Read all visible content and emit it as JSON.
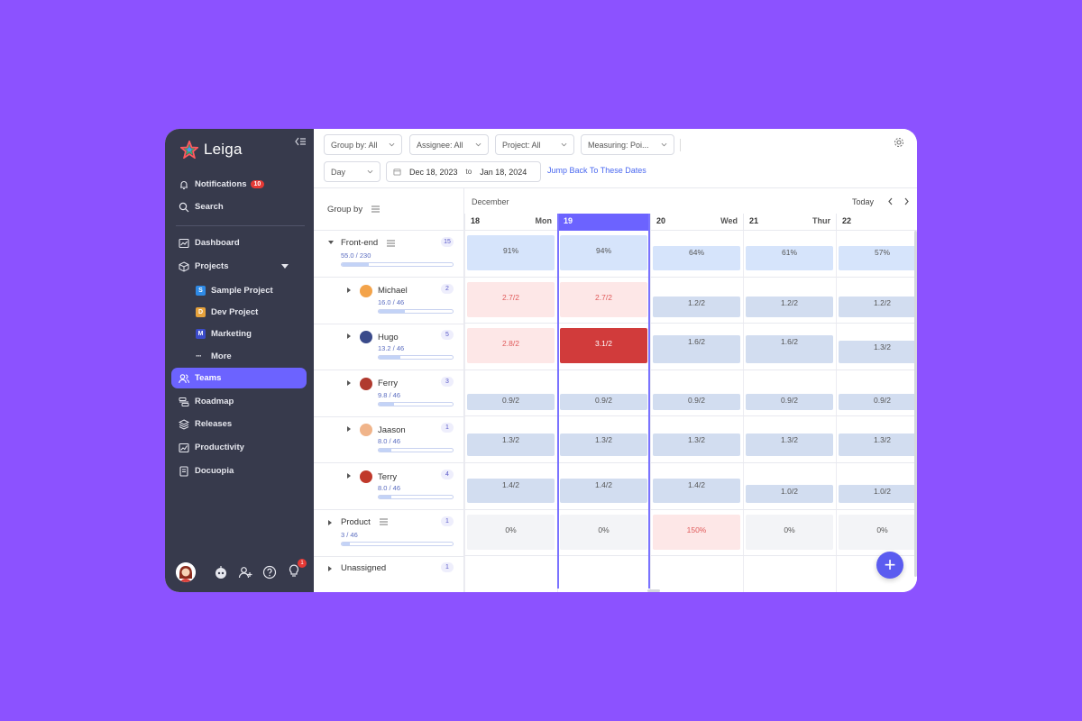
{
  "app": {
    "name": "Leiga"
  },
  "sidebar": {
    "notifications": {
      "label": "Notifications",
      "count": "10"
    },
    "search": {
      "label": "Search"
    },
    "dashboard": {
      "label": "Dashboard"
    },
    "projects": {
      "label": "Projects"
    },
    "project_items": [
      {
        "label": "Sample Project",
        "letter": "S",
        "color": "#2e8ae6"
      },
      {
        "label": "Dev Project",
        "letter": "D",
        "color": "#e6a23c"
      },
      {
        "label": "Marketing",
        "letter": "M",
        "color": "#3b4bc8"
      }
    ],
    "more": {
      "label": "More"
    },
    "teams": {
      "label": "Teams"
    },
    "roadmap": {
      "label": "Roadmap"
    },
    "releases": {
      "label": "Releases"
    },
    "productivity": {
      "label": "Productivity"
    },
    "docuopia": {
      "label": "Docuopia"
    },
    "bulb_badge": "1"
  },
  "toolbar": {
    "group_by": "Group by: All",
    "assignee": "Assignee: All",
    "project": "Project: All",
    "measuring": "Measuring: Poi...",
    "period": "Day",
    "date_from": "Dec 18, 2023",
    "date_to_sep": "to",
    "date_to": "Jan 18, 2024",
    "jump_link": "Jump Back To These Dates"
  },
  "grid": {
    "group_by_label": "Group by",
    "month": "December",
    "today_label": "Today",
    "days": [
      {
        "num": "18",
        "name": "Mon"
      },
      {
        "num": "19",
        "name": ""
      },
      {
        "num": "20",
        "name": "Wed"
      },
      {
        "num": "21",
        "name": "Thur"
      },
      {
        "num": "22",
        "name": "F"
      }
    ],
    "rows": [
      {
        "name": "Front-end",
        "sub": "55.0 / 230",
        "count": "15",
        "progress": 0.24,
        "cells": [
          "91%",
          "94%",
          "64%",
          "61%",
          "57%"
        ]
      },
      {
        "name": "Michael",
        "sub": "16.0 / 46",
        "count": "2",
        "progress": 0.35,
        "cells": [
          "2.7/2",
          "2.7/2",
          "1.2/2",
          "1.2/2",
          "1.2/2"
        ]
      },
      {
        "name": "Hugo",
        "sub": "13.2 / 46",
        "count": "5",
        "progress": 0.29,
        "cells": [
          "2.8/2",
          "3.1/2",
          "1.6/2",
          "1.6/2",
          "1.3/2"
        ]
      },
      {
        "name": "Ferry",
        "sub": "9.8 / 46",
        "count": "3",
        "progress": 0.21,
        "cells": [
          "0.9/2",
          "0.9/2",
          "0.9/2",
          "0.9/2",
          "0.9/2"
        ]
      },
      {
        "name": "Jaason",
        "sub": "8.0 / 46",
        "count": "1",
        "progress": 0.17,
        "cells": [
          "1.3/2",
          "1.3/2",
          "1.3/2",
          "1.3/2",
          "1.3/2"
        ]
      },
      {
        "name": "Terry",
        "sub": "8.0 / 46",
        "count": "4",
        "progress": 0.17,
        "cells": [
          "1.4/2",
          "1.4/2",
          "1.4/2",
          "1.0/2",
          "1.0/2"
        ]
      },
      {
        "name": "Product",
        "sub": "3 / 46",
        "count": "1",
        "progress": 0.07,
        "cells": [
          "0%",
          "0%",
          "150%",
          "0%",
          "0%"
        ]
      },
      {
        "name": "Unassigned",
        "sub": "",
        "count": "1",
        "progress": 0,
        "cells": []
      }
    ]
  },
  "colors": {
    "accent": "#6c63ff",
    "sidebar_bg": "#373a4c",
    "background": "#8c52ff",
    "over_light": "#fde7e7",
    "over_dark": "#d13b3b",
    "normal_blue": "#d2ddf0",
    "light_blue": "#d6e4fb",
    "neutral": "#f3f4f7"
  },
  "fab_label": "+"
}
